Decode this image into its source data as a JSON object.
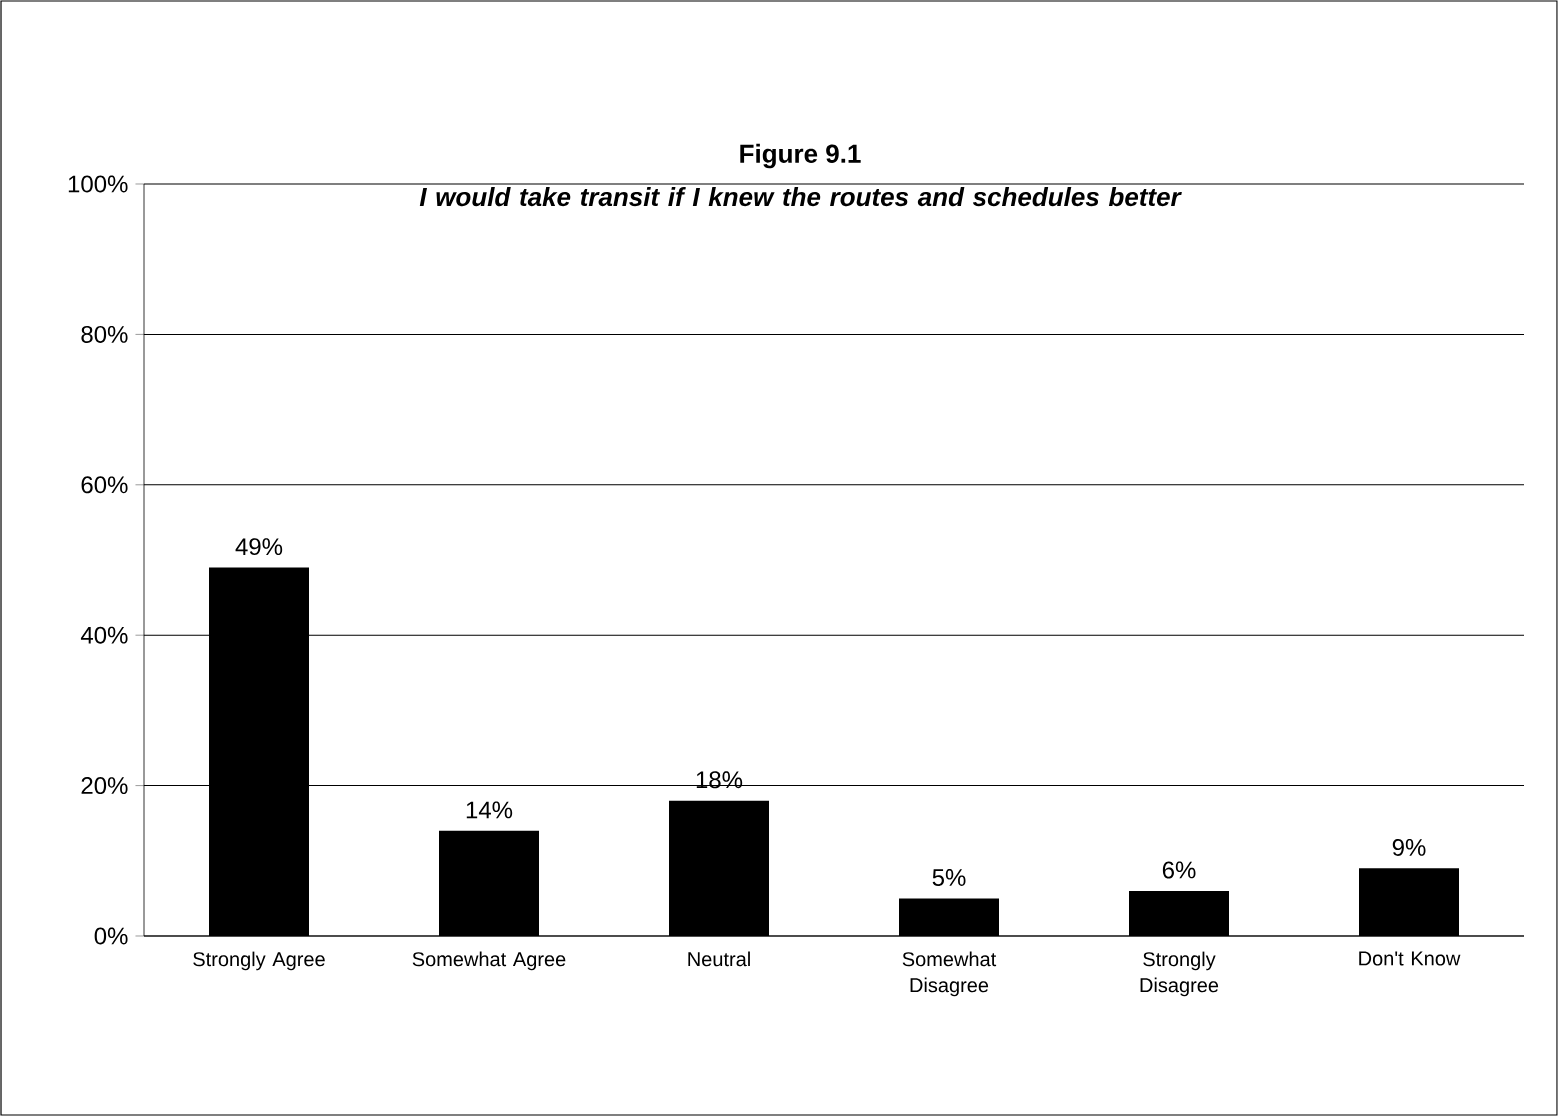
{
  "chart_data": {
    "type": "bar",
    "title": "Figure 9.1",
    "subtitle": "I would take transit if I knew the routes and schedules better",
    "categories": [
      "Strongly Agree",
      "Somewhat Agree",
      "Neutral",
      "Somewhat Disagree",
      "Strongly Disagree",
      "Don't Know"
    ],
    "values": [
      49,
      14,
      18,
      5,
      6,
      9
    ],
    "value_labels": [
      "49%",
      "14%",
      "18%",
      "5%",
      "6%",
      "9%"
    ],
    "color": "#000000",
    "ylim": [
      0,
      100
    ],
    "yticks": [
      {
        "value": 0,
        "label": "0%"
      },
      {
        "value": 20,
        "label": "20%"
      },
      {
        "value": 40,
        "label": "40%"
      },
      {
        "value": 60,
        "label": "60%"
      },
      {
        "value": 80,
        "label": "80%"
      },
      {
        "value": 100,
        "label": "100%"
      }
    ],
    "grid": "y"
  }
}
